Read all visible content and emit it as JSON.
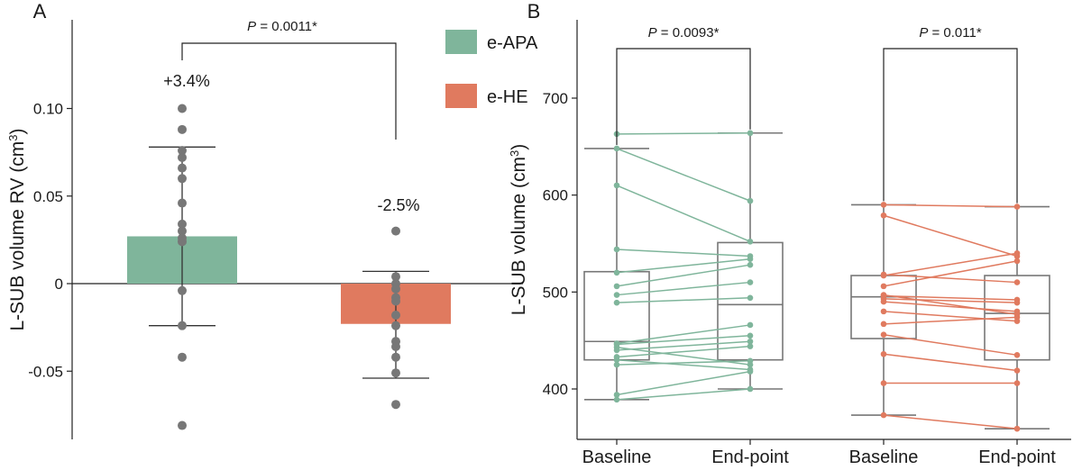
{
  "chart_data": [
    {
      "panel": "A",
      "type": "bar",
      "ylabel_main": "L-SUB volume RV (cm",
      "ylabel_sup": "3",
      "ylabel_end": ")",
      "ylim": [
        -0.088,
        0.12
      ],
      "yticks": [
        0.1,
        0.05,
        0,
        -0.05
      ],
      "ytick_labels": [
        "0.10",
        "0.05",
        "0",
        "-0.05"
      ],
      "categories": [
        "e-APA",
        "e-HE"
      ],
      "colors": [
        "#7fb59b",
        "#e07a5f"
      ],
      "values": [
        0.027,
        -0.023
      ],
      "error_high": [
        0.078,
        0.007
      ],
      "error_low": [
        -0.024,
        -0.054
      ],
      "percent_labels": [
        "+3.4%",
        "-2.5%"
      ],
      "points": [
        [
          0.1,
          0.088,
          0.076,
          0.072,
          0.066,
          0.06,
          0.046,
          0.034,
          0.03,
          0.026,
          0.024,
          -0.004,
          -0.024,
          -0.042,
          -0.081
        ],
        [
          0.03,
          0.004,
          0.0,
          -0.003,
          -0.008,
          -0.01,
          -0.018,
          -0.024,
          -0.033,
          -0.036,
          -0.042,
          -0.051,
          -0.069
        ]
      ],
      "pvalue": {
        "italic": "P",
        "text": " = 0.0011*"
      },
      "legend": [
        {
          "label": "e-APA",
          "color": "#7fb59b"
        },
        {
          "label": "e-HE",
          "color": "#e07a5f"
        }
      ]
    },
    {
      "panel": "B",
      "type": "box",
      "ylabel_main": "L-SUB volume (cm",
      "ylabel_sup": "3",
      "ylabel_end": ")",
      "ylim": [
        350,
        770
      ],
      "yticks": [
        400,
        500,
        600,
        700
      ],
      "categories": [
        "Baseline",
        "End-point",
        "Baseline",
        "End-point"
      ],
      "groups": [
        {
          "name": "e-APA",
          "color": "#7fb59b",
          "boxes": [
            {
              "min": 389,
              "q1": 430,
              "median": 449,
              "q3": 521,
              "max": 648
            },
            {
              "min": 400,
              "q1": 430,
              "median": 487,
              "q3": 551,
              "max": 664
            }
          ],
          "pairs": [
            [
              389,
              400
            ],
            [
              394,
              418
            ],
            [
              425,
              429
            ],
            [
              430,
              420
            ],
            [
              433,
              444
            ],
            [
              440,
              449
            ],
            [
              443,
              425
            ],
            [
              446,
              455
            ],
            [
              447,
              466
            ],
            [
              489,
              494
            ],
            [
              497,
              510
            ],
            [
              506,
              528
            ],
            [
              520,
              534
            ],
            [
              544,
              537
            ],
            [
              610,
              552
            ],
            [
              648,
              594
            ],
            [
              663,
              664
            ]
          ],
          "pvalue": {
            "italic": "P",
            "text": " = 0.0093*"
          }
        },
        {
          "name": "e-HE",
          "color": "#e07a5f",
          "boxes": [
            {
              "min": 373,
              "q1": 452,
              "median": 495,
              "q3": 517,
              "max": 590
            },
            {
              "min": 359,
              "q1": 430,
              "median": 478,
              "q3": 517,
              "max": 588
            }
          ],
          "pairs": [
            [
              373,
              359
            ],
            [
              406,
              406
            ],
            [
              436,
              419
            ],
            [
              456,
              435
            ],
            [
              467,
              474
            ],
            [
              480,
              470
            ],
            [
              490,
              480
            ],
            [
              493,
              489
            ],
            [
              496,
              492
            ],
            [
              497,
              477
            ],
            [
              506,
              532
            ],
            [
              517,
              540
            ],
            [
              518,
              510
            ],
            [
              579,
              537
            ],
            [
              590,
              588
            ]
          ],
          "pvalue": {
            "italic": "P",
            "text": " = 0.011*"
          }
        }
      ]
    }
  ]
}
